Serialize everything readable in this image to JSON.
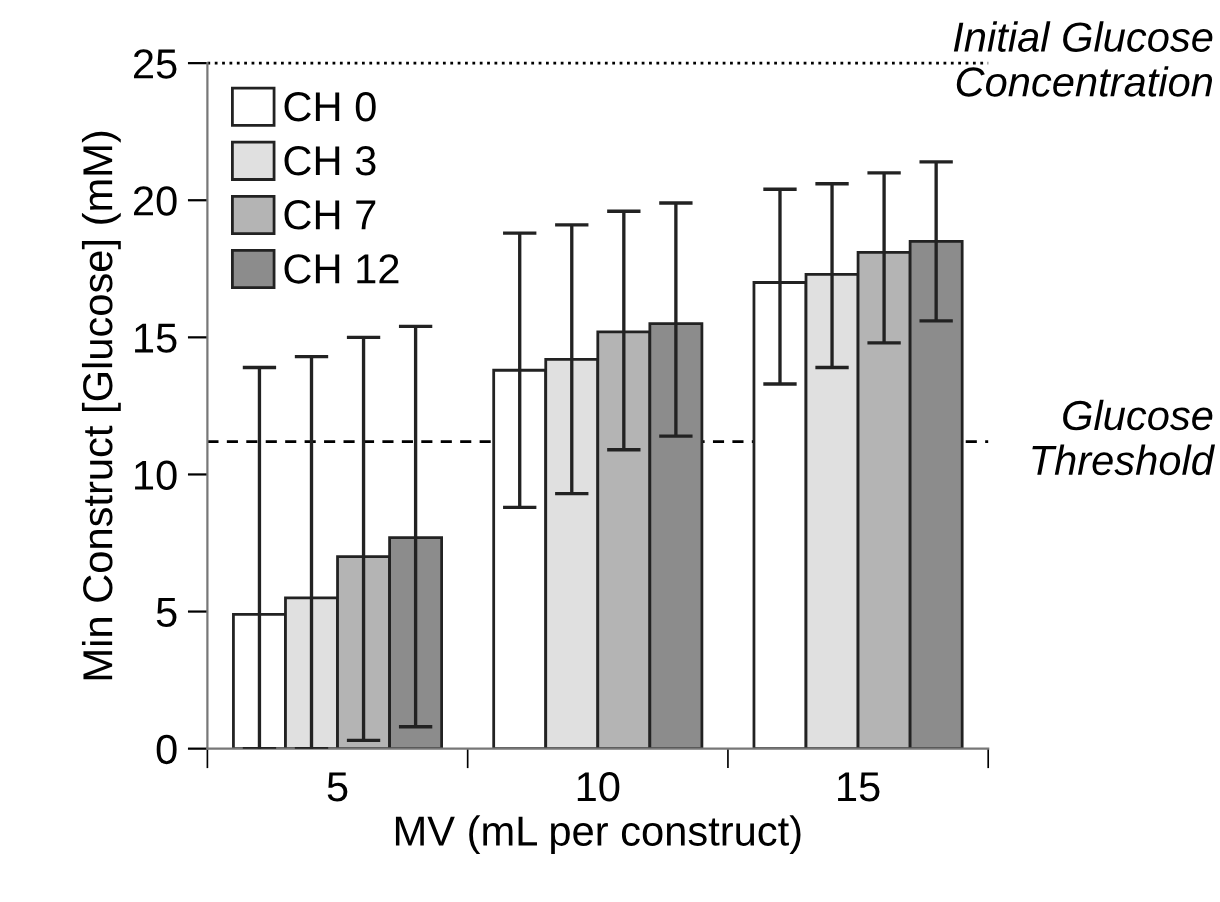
{
  "chart_data": {
    "type": "bar",
    "xlabel": "MV (mL per construct)",
    "ylabel": "Min Construct [Glucose] (mM)",
    "categories": [
      "5",
      "10",
      "15"
    ],
    "series": [
      {
        "name": "CH 0",
        "color": "#ffffff",
        "values": [
          4.9,
          13.8,
          17.0
        ],
        "errors": [
          [
            0,
            13.9
          ],
          [
            8.8,
            18.8
          ],
          [
            13.3,
            20.4
          ]
        ]
      },
      {
        "name": "CH 3",
        "color": "#e0e0e0",
        "values": [
          5.5,
          14.2,
          17.3
        ],
        "errors": [
          [
            0,
            14.3
          ],
          [
            9.3,
            19.1
          ],
          [
            13.9,
            20.6
          ]
        ]
      },
      {
        "name": "CH 7",
        "color": "#b4b4b4",
        "values": [
          7.0,
          15.2,
          18.1
        ],
        "errors": [
          [
            0.3,
            15.0
          ],
          [
            10.9,
            19.6
          ],
          [
            14.8,
            21.0
          ]
        ]
      },
      {
        "name": "CH 12",
        "color": "#8c8c8c",
        "values": [
          7.7,
          15.5,
          18.5
        ],
        "errors": [
          [
            0.8,
            15.4
          ],
          [
            11.4,
            19.9
          ],
          [
            15.6,
            21.4
          ]
        ]
      }
    ],
    "ylim": [
      0,
      25
    ],
    "yticks": [
      0,
      5,
      10,
      15,
      20,
      25
    ],
    "ref_lines": [
      {
        "axis": "y",
        "value": 25,
        "label": "Initial Glucose\nConcentration",
        "color": "#000000",
        "line_style": "dotted"
      },
      {
        "axis": "y",
        "value": 11.2,
        "label": "Glucose\nThreshold",
        "color": "#000000",
        "line_style": "dashed"
      }
    ],
    "grid": false,
    "legend": "top left"
  }
}
